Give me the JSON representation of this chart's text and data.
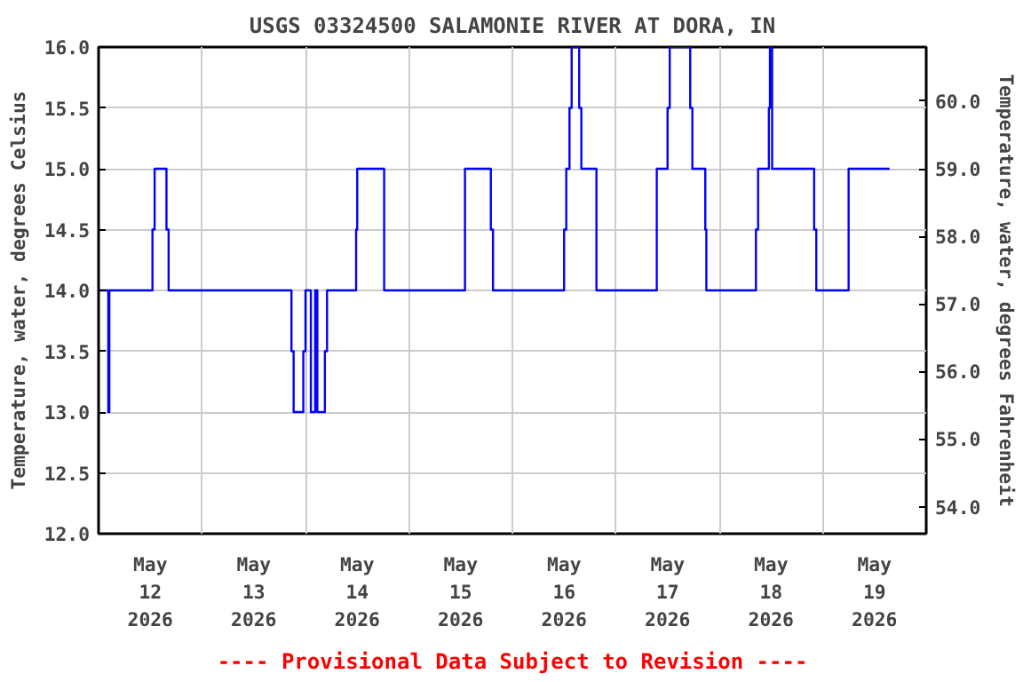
{
  "chart_data": {
    "type": "step",
    "title": "USGS 03324500 SALAMONIE RIVER AT DORA, IN",
    "ylabel": "Temperature, water, degrees Celsius",
    "y2label": "Temperature, water, degrees Fahrenheit",
    "annotations": [
      "---- Provisional Data Subject to Revision ----"
    ],
    "x": [
      "2026-05-12T00:00",
      "2026-05-12T02:15",
      "2026-05-12T02:30",
      "2026-05-12T12:30",
      "2026-05-12T13:00",
      "2026-05-12T15:45",
      "2026-05-12T16:15",
      "2026-05-13T20:45",
      "2026-05-13T21:15",
      "2026-05-13T23:30",
      "2026-05-14T00:00",
      "2026-05-14T01:15",
      "2026-05-14T02:15",
      "2026-05-14T02:45",
      "2026-05-14T04:30",
      "2026-05-14T05:00",
      "2026-05-14T11:45",
      "2026-05-14T12:00",
      "2026-05-14T18:15",
      "2026-05-15T13:00",
      "2026-05-15T19:00",
      "2026-05-15T19:30",
      "2026-05-16T12:00",
      "2026-05-16T12:30",
      "2026-05-16T13:15",
      "2026-05-16T13:45",
      "2026-05-16T15:30",
      "2026-05-16T16:00",
      "2026-05-16T19:30",
      "2026-05-17T09:30",
      "2026-05-17T12:00",
      "2026-05-17T12:30",
      "2026-05-17T17:15",
      "2026-05-17T17:45",
      "2026-05-17T20:45",
      "2026-05-17T21:00",
      "2026-05-18T08:30",
      "2026-05-18T09:00",
      "2026-05-18T11:30",
      "2026-05-18T11:45",
      "2026-05-18T12:15",
      "2026-05-18T22:00",
      "2026-05-18T22:30",
      "2026-05-19T06:00",
      "2026-05-19T15:30"
    ],
    "series": [
      {
        "color": "#0000ff",
        "values": [
          14.0,
          13.0,
          14.0,
          14.5,
          15.0,
          14.5,
          14.0,
          13.5,
          13.0,
          13.5,
          14.0,
          13.0,
          14.0,
          13.0,
          13.5,
          14.0,
          14.5,
          15.0,
          14.0,
          15.0,
          14.5,
          14.0,
          14.5,
          15.0,
          15.5,
          16.0,
          15.5,
          15.0,
          14.0,
          15.0,
          15.5,
          16.0,
          15.5,
          15.0,
          14.5,
          14.0,
          14.5,
          15.0,
          15.5,
          16.0,
          15.0,
          14.5,
          14.0,
          15.0,
          15.0
        ]
      }
    ],
    "xlim": [
      "2026-05-12T00:00",
      "2026-05-20T00:00"
    ],
    "xticks": [
      {
        "value": "2026-05-12T00:00",
        "label": null
      },
      {
        "value": "2026-05-12T12:00",
        "label": "May\n12\n2026"
      },
      {
        "value": "2026-05-13T00:00",
        "label": null
      },
      {
        "value": "2026-05-13T12:00",
        "label": "May\n13\n2026"
      },
      {
        "value": "2026-05-14T00:00",
        "label": null
      },
      {
        "value": "2026-05-14T12:00",
        "label": "May\n14\n2026"
      },
      {
        "value": "2026-05-15T00:00",
        "label": null
      },
      {
        "value": "2026-05-15T12:00",
        "label": "May\n15\n2026"
      },
      {
        "value": "2026-05-16T00:00",
        "label": null
      },
      {
        "value": "2026-05-16T12:00",
        "label": "May\n16\n2026"
      },
      {
        "value": "2026-05-17T00:00",
        "label": null
      },
      {
        "value": "2026-05-17T12:00",
        "label": "May\n17\n2026"
      },
      {
        "value": "2026-05-18T00:00",
        "label": null
      },
      {
        "value": "2026-05-18T12:00",
        "label": "May\n18\n2026"
      },
      {
        "value": "2026-05-19T00:00",
        "label": null
      },
      {
        "value": "2026-05-19T12:00",
        "label": "May\n19\n2026"
      },
      {
        "value": "2026-05-20T00:00",
        "label": null
      }
    ],
    "ylim": [
      12.0,
      16.0
    ],
    "yticks": [
      {
        "value": 12,
        "label": "12.0"
      },
      {
        "value": 12.5,
        "label": "12.5"
      },
      {
        "value": 13,
        "label": "13.0"
      },
      {
        "value": 13.5,
        "label": "13.5"
      },
      {
        "value": 14,
        "label": "14.0"
      },
      {
        "value": 14.5,
        "label": "14.5"
      },
      {
        "value": 15,
        "label": "15.0"
      },
      {
        "value": 15.5,
        "label": "15.5"
      },
      {
        "value": 16,
        "label": "16.0"
      }
    ],
    "y2lim": [
      53.6,
      60.8
    ],
    "y2ticks": [
      {
        "value": 54,
        "label": "54.0"
      },
      {
        "value": 55,
        "label": "55.0"
      },
      {
        "value": 56,
        "label": "56.0"
      },
      {
        "value": 57,
        "label": "57.0"
      },
      {
        "value": 58,
        "label": "58.0"
      },
      {
        "value": 59,
        "label": "59.0"
      },
      {
        "value": 60,
        "label": "60.0"
      }
    ],
    "grid": true,
    "line_style": "solid",
    "marker": "none"
  }
}
